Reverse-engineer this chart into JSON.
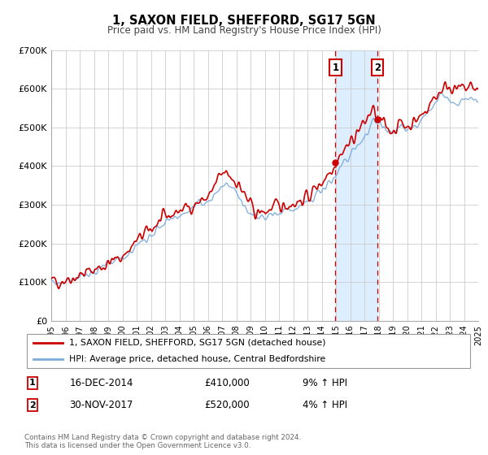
{
  "title": "1, SAXON FIELD, SHEFFORD, SG17 5GN",
  "subtitle": "Price paid vs. HM Land Registry's House Price Index (HPI)",
  "legend_label_red": "1, SAXON FIELD, SHEFFORD, SG17 5GN (detached house)",
  "legend_label_blue": "HPI: Average price, detached house, Central Bedfordshire",
  "transaction1_label": "16-DEC-2014",
  "transaction1_price": "£410,000",
  "transaction1_hpi": "9% ↑ HPI",
  "transaction2_label": "30-NOV-2017",
  "transaction2_price": "£520,000",
  "transaction2_hpi": "4% ↑ HPI",
  "transaction1_year": 2014.96,
  "transaction2_year": 2017.92,
  "transaction1_value": 410000,
  "transaction2_value": 520000,
  "copyright_text": "Contains HM Land Registry data © Crown copyright and database right 2024.\nThis data is licensed under the Open Government Licence v3.0.",
  "xmin": 1995,
  "xmax": 2025,
  "ymin": 0,
  "ymax": 700000,
  "yticks": [
    0,
    100000,
    200000,
    300000,
    400000,
    500000,
    600000,
    700000
  ],
  "ytick_labels": [
    "£0",
    "£100K",
    "£200K",
    "£300K",
    "£400K",
    "£500K",
    "£600K",
    "£700K"
  ],
  "xticks": [
    1995,
    1996,
    1997,
    1998,
    1999,
    2000,
    2001,
    2002,
    2003,
    2004,
    2005,
    2006,
    2007,
    2008,
    2009,
    2010,
    2011,
    2012,
    2013,
    2014,
    2015,
    2016,
    2017,
    2018,
    2019,
    2020,
    2021,
    2022,
    2023,
    2024,
    2025
  ],
  "red_color": "#cc0000",
  "blue_color": "#7aabdb",
  "shade_color": "#ddeeff",
  "vline_color": "#cc0000",
  "grid_color": "#cccccc",
  "background_color": "#ffffff",
  "box_color": "#cc0000"
}
